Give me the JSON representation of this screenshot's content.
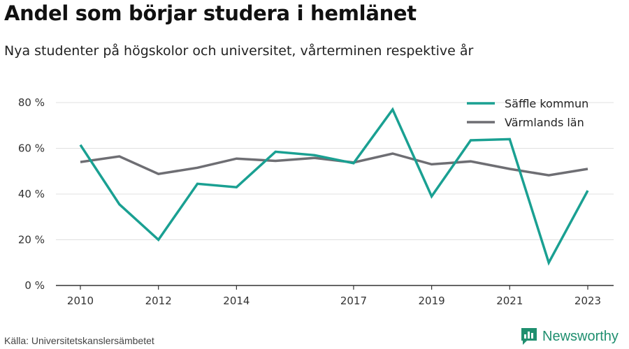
{
  "header": {
    "title": "Andel som börjar studera i hemlänet",
    "subtitle": "Nya studenter på högskolor och universitet, vårterminen respektive år"
  },
  "footer": {
    "source": "Källa: Universitetskanslersämbetet",
    "brand": "Newsworthy",
    "brand_icon": "newsworthy-logo-icon"
  },
  "colors": {
    "saffle": "#1aa092",
    "varmland": "#6e6e73",
    "grid": "#e0e0e0",
    "axis": "#333333",
    "brand": "#1f8f6f"
  },
  "chart_data": {
    "type": "line",
    "x": [
      2010,
      2011,
      2012,
      2013,
      2014,
      2015,
      2016,
      2017,
      2018,
      2019,
      2020,
      2021,
      2022,
      2023
    ],
    "x_tick_labels": [
      "2010",
      "2012",
      "2014",
      "2017",
      "2019",
      "2021",
      "2023"
    ],
    "x_tick_values": [
      2010,
      2012,
      2014,
      2017,
      2019,
      2021,
      2023
    ],
    "y_tick_labels": [
      "0 %",
      "20 %",
      "40 %",
      "60 %",
      "80 %"
    ],
    "y_tick_values": [
      0,
      20,
      40,
      60,
      80
    ],
    "ylim": [
      0,
      80
    ],
    "xlim": [
      2010,
      2023
    ],
    "grid": true,
    "legend_position": "top-right",
    "series": [
      {
        "name": "Säffle kommun",
        "color": "#1aa092",
        "values": [
          61.5,
          35.5,
          20,
          44.5,
          43,
          58.5,
          57,
          53.5,
          77,
          39,
          63.5,
          64,
          10,
          41.5
        ]
      },
      {
        "name": "Värmlands län",
        "color": "#6e6e73",
        "values": [
          54,
          56.5,
          48.8,
          51.5,
          55.5,
          54.5,
          55.8,
          53.8,
          57.7,
          53,
          54.3,
          51,
          48.2,
          51
        ]
      }
    ]
  }
}
